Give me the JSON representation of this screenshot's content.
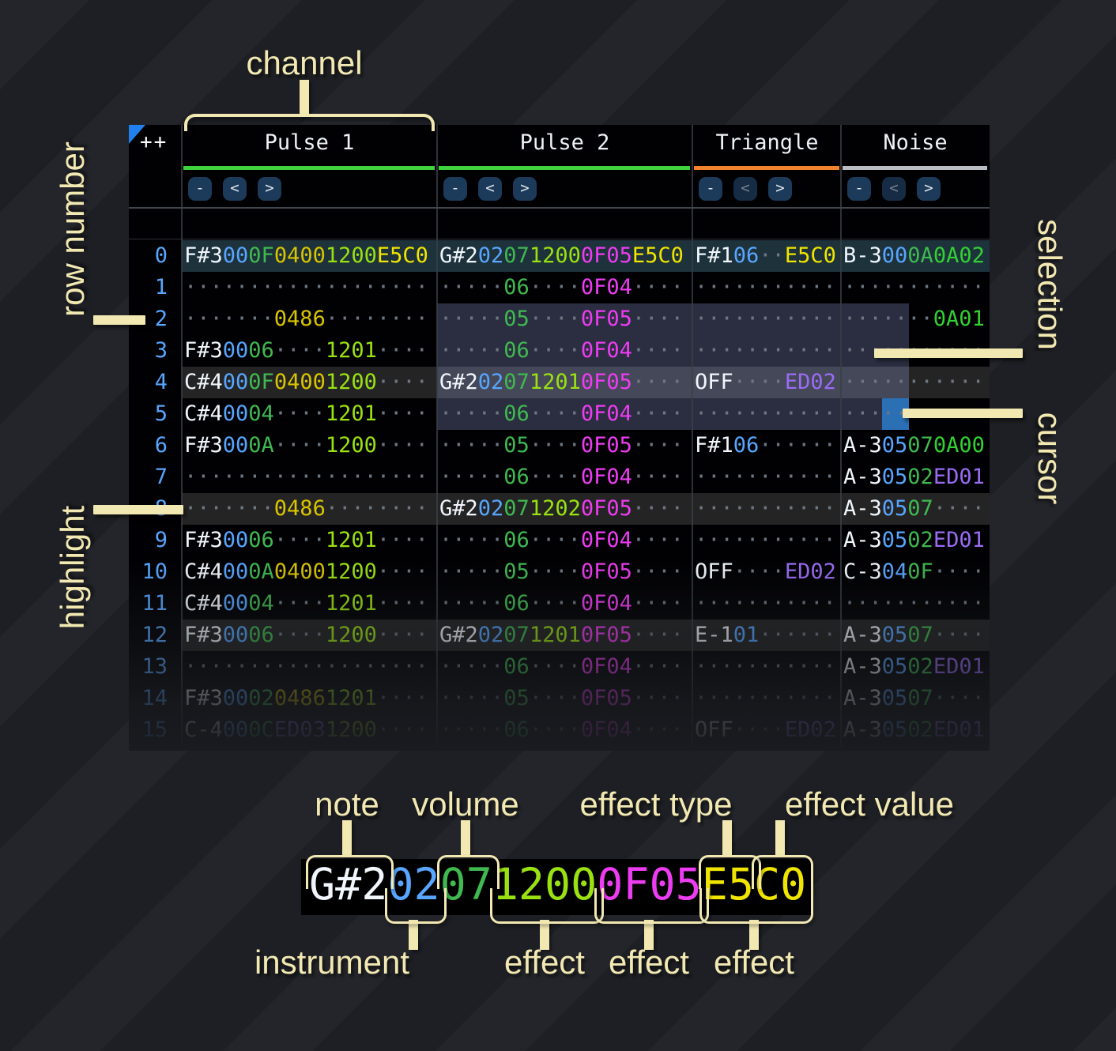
{
  "header": {
    "corner_button": "++",
    "channels": [
      {
        "name": "Pulse 1",
        "color": "#3ed33d",
        "buttons": [
          {
            "label": "-",
            "dimmed": false
          },
          {
            "label": "<",
            "dimmed": false
          },
          {
            "label": ">",
            "dimmed": false
          }
        ]
      },
      {
        "name": "Pulse 2",
        "color": "#3ed33d",
        "buttons": [
          {
            "label": "-",
            "dimmed": false
          },
          {
            "label": "<",
            "dimmed": false
          },
          {
            "label": ">",
            "dimmed": false
          }
        ]
      },
      {
        "name": "Triangle",
        "color": "#f5822d",
        "buttons": [
          {
            "label": "-",
            "dimmed": false
          },
          {
            "label": "<",
            "dimmed": true
          },
          {
            "label": ">",
            "dimmed": false
          }
        ]
      },
      {
        "name": "Noise",
        "color": "#b9bec5",
        "buttons": [
          {
            "label": "-",
            "dimmed": false
          },
          {
            "label": "<",
            "dimmed": true
          },
          {
            "label": ">",
            "dimmed": false
          }
        ]
      }
    ]
  },
  "rows": [
    {
      "n": "0",
      "bg": "active",
      "p1": [
        [
          "F#3",
          "n"
        ],
        [
          "00",
          "i"
        ],
        [
          "0F",
          "v"
        ],
        [
          "0400",
          "y"
        ],
        [
          "1200",
          "l"
        ],
        [
          "E5C0",
          "Y"
        ]
      ],
      "p2": [
        [
          "G#2",
          "n"
        ],
        [
          "02",
          "i"
        ],
        [
          "07",
          "v"
        ],
        [
          "1200",
          "l"
        ],
        [
          "0F05",
          "m"
        ],
        [
          "E5C0",
          "Y"
        ]
      ],
      "tri": [
        [
          "F#1",
          "n"
        ],
        [
          "06",
          "i"
        ],
        [
          "..",
          "d"
        ],
        [
          "E5C0",
          "Y"
        ]
      ],
      "noi": [
        [
          "B-3",
          "n"
        ],
        [
          "00",
          "i"
        ],
        [
          "0A",
          "v"
        ],
        [
          "0A02",
          "g"
        ]
      ]
    },
    {
      "n": "1",
      "bg": "",
      "p1": [
        [
          "...................",
          "d"
        ]
      ],
      "p2": [
        [
          ".....",
          "d"
        ],
        [
          "06",
          "v"
        ],
        [
          "....",
          "d"
        ],
        [
          "0F04",
          "m"
        ],
        [
          "....",
          "d"
        ]
      ],
      "tri": [
        [
          "...........",
          "d"
        ]
      ],
      "noi": [
        [
          "...........",
          "d"
        ]
      ]
    },
    {
      "n": "2",
      "bg": "",
      "p1": [
        [
          ".......",
          "d"
        ],
        [
          "0486",
          "y"
        ],
        [
          "........",
          "d"
        ]
      ],
      "p2": [
        [
          ".....",
          "d"
        ],
        [
          "05",
          "v"
        ],
        [
          "....",
          "d"
        ],
        [
          "0F05",
          "m"
        ],
        [
          "....",
          "d"
        ]
      ],
      "tri": [
        [
          "...........",
          "d"
        ]
      ],
      "noi": [
        [
          ".......",
          "d"
        ],
        [
          "0A01",
          "g"
        ]
      ]
    },
    {
      "n": "3",
      "bg": "",
      "p1": [
        [
          "F#3",
          "n"
        ],
        [
          "00",
          "i"
        ],
        [
          "06",
          "v"
        ],
        [
          "....",
          "d"
        ],
        [
          "1201",
          "l"
        ],
        [
          "....",
          "d"
        ]
      ],
      "p2": [
        [
          ".....",
          "d"
        ],
        [
          "06",
          "v"
        ],
        [
          "....",
          "d"
        ],
        [
          "0F04",
          "m"
        ],
        [
          "....",
          "d"
        ]
      ],
      "tri": [
        [
          "...........",
          "d"
        ]
      ],
      "noi": [
        [
          "...........",
          "d"
        ]
      ]
    },
    {
      "n": "4",
      "bg": "beat",
      "p1": [
        [
          "C#4",
          "n"
        ],
        [
          "00",
          "i"
        ],
        [
          "0F",
          "v"
        ],
        [
          "0400",
          "y"
        ],
        [
          "1200",
          "l"
        ],
        [
          "....",
          "d"
        ]
      ],
      "p2": [
        [
          "G#2",
          "n"
        ],
        [
          "02",
          "i"
        ],
        [
          "07",
          "v"
        ],
        [
          "1201",
          "l"
        ],
        [
          "0F05",
          "m"
        ],
        [
          "....",
          "d"
        ]
      ],
      "tri": [
        [
          "OFF",
          "n"
        ],
        [
          "....",
          "d"
        ],
        [
          "ED02",
          "p"
        ]
      ],
      "noi": [
        [
          "...........",
          "d"
        ]
      ]
    },
    {
      "n": "5",
      "bg": "",
      "p1": [
        [
          "C#4",
          "n"
        ],
        [
          "00",
          "i"
        ],
        [
          "04",
          "v"
        ],
        [
          "....",
          "d"
        ],
        [
          "1201",
          "l"
        ],
        [
          "....",
          "d"
        ]
      ],
      "p2": [
        [
          ".....",
          "d"
        ],
        [
          "06",
          "v"
        ],
        [
          "....",
          "d"
        ],
        [
          "0F04",
          "m"
        ],
        [
          "....",
          "d"
        ]
      ],
      "tri": [
        [
          "...........",
          "d"
        ]
      ],
      "noi": [
        [
          "...........",
          "d"
        ]
      ]
    },
    {
      "n": "6",
      "bg": "",
      "p1": [
        [
          "F#3",
          "n"
        ],
        [
          "00",
          "i"
        ],
        [
          "0A",
          "v"
        ],
        [
          "....",
          "d"
        ],
        [
          "1200",
          "l"
        ],
        [
          "....",
          "d"
        ]
      ],
      "p2": [
        [
          ".....",
          "d"
        ],
        [
          "05",
          "v"
        ],
        [
          "....",
          "d"
        ],
        [
          "0F05",
          "m"
        ],
        [
          "....",
          "d"
        ]
      ],
      "tri": [
        [
          "F#1",
          "n"
        ],
        [
          "06",
          "i"
        ],
        [
          "......",
          "d"
        ]
      ],
      "noi": [
        [
          "A-3",
          "n"
        ],
        [
          "05",
          "i"
        ],
        [
          "07",
          "v"
        ],
        [
          "0A00",
          "g"
        ]
      ]
    },
    {
      "n": "7",
      "bg": "",
      "p1": [
        [
          "...................",
          "d"
        ]
      ],
      "p2": [
        [
          ".....",
          "d"
        ],
        [
          "06",
          "v"
        ],
        [
          "....",
          "d"
        ],
        [
          "0F04",
          "m"
        ],
        [
          "....",
          "d"
        ]
      ],
      "tri": [
        [
          "...........",
          "d"
        ]
      ],
      "noi": [
        [
          "A-3",
          "n"
        ],
        [
          "05",
          "i"
        ],
        [
          "02",
          "v"
        ],
        [
          "ED01",
          "p"
        ]
      ]
    },
    {
      "n": "8",
      "bg": "beat",
      "p1": [
        [
          ".......",
          "d"
        ],
        [
          "0486",
          "y"
        ],
        [
          "........",
          "d"
        ]
      ],
      "p2": [
        [
          "G#2",
          "n"
        ],
        [
          "02",
          "i"
        ],
        [
          "07",
          "v"
        ],
        [
          "1202",
          "l"
        ],
        [
          "0F05",
          "m"
        ],
        [
          "....",
          "d"
        ]
      ],
      "tri": [
        [
          "...........",
          "d"
        ]
      ],
      "noi": [
        [
          "A-3",
          "n"
        ],
        [
          "05",
          "i"
        ],
        [
          "07",
          "v"
        ],
        [
          "....",
          "d"
        ]
      ]
    },
    {
      "n": "9",
      "bg": "",
      "p1": [
        [
          "F#3",
          "n"
        ],
        [
          "00",
          "i"
        ],
        [
          "06",
          "v"
        ],
        [
          "....",
          "d"
        ],
        [
          "1201",
          "l"
        ],
        [
          "....",
          "d"
        ]
      ],
      "p2": [
        [
          ".....",
          "d"
        ],
        [
          "06",
          "v"
        ],
        [
          "....",
          "d"
        ],
        [
          "0F04",
          "m"
        ],
        [
          "....",
          "d"
        ]
      ],
      "tri": [
        [
          "...........",
          "d"
        ]
      ],
      "noi": [
        [
          "A-3",
          "n"
        ],
        [
          "05",
          "i"
        ],
        [
          "02",
          "v"
        ],
        [
          "ED01",
          "p"
        ]
      ]
    },
    {
      "n": "10",
      "bg": "",
      "p1": [
        [
          "C#4",
          "n"
        ],
        [
          "00",
          "i"
        ],
        [
          "0A",
          "v"
        ],
        [
          "0400",
          "y"
        ],
        [
          "1200",
          "l"
        ],
        [
          "....",
          "d"
        ]
      ],
      "p2": [
        [
          ".....",
          "d"
        ],
        [
          "05",
          "v"
        ],
        [
          "....",
          "d"
        ],
        [
          "0F05",
          "m"
        ],
        [
          "....",
          "d"
        ]
      ],
      "tri": [
        [
          "OFF",
          "n"
        ],
        [
          "....",
          "d"
        ],
        [
          "ED02",
          "p"
        ]
      ],
      "noi": [
        [
          "C-3",
          "n"
        ],
        [
          "04",
          "i"
        ],
        [
          "0F",
          "v"
        ],
        [
          "....",
          "d"
        ]
      ]
    },
    {
      "n": "11",
      "bg": "",
      "p1": [
        [
          "C#4",
          "n"
        ],
        [
          "00",
          "i"
        ],
        [
          "04",
          "v"
        ],
        [
          "....",
          "d"
        ],
        [
          "1201",
          "l"
        ],
        [
          "....",
          "d"
        ]
      ],
      "p2": [
        [
          ".....",
          "d"
        ],
        [
          "06",
          "v"
        ],
        [
          "....",
          "d"
        ],
        [
          "0F04",
          "m"
        ],
        [
          "....",
          "d"
        ]
      ],
      "tri": [
        [
          "...........",
          "d"
        ]
      ],
      "noi": [
        [
          "...........",
          "d"
        ]
      ]
    },
    {
      "n": "12",
      "bg": "beat",
      "p1": [
        [
          "F#3",
          "n"
        ],
        [
          "00",
          "i"
        ],
        [
          "06",
          "v"
        ],
        [
          "....",
          "d"
        ],
        [
          "1200",
          "l"
        ],
        [
          "....",
          "d"
        ]
      ],
      "p2": [
        [
          "G#2",
          "n"
        ],
        [
          "02",
          "i"
        ],
        [
          "07",
          "v"
        ],
        [
          "1201",
          "l"
        ],
        [
          "0F05",
          "m"
        ],
        [
          "....",
          "d"
        ]
      ],
      "tri": [
        [
          "E-1",
          "n"
        ],
        [
          "01",
          "i"
        ],
        [
          "......",
          "d"
        ]
      ],
      "noi": [
        [
          "A-3",
          "n"
        ],
        [
          "05",
          "i"
        ],
        [
          "07",
          "v"
        ],
        [
          "....",
          "d"
        ]
      ]
    },
    {
      "n": "13",
      "bg": "",
      "p1": [
        [
          "...................",
          "d"
        ]
      ],
      "p2": [
        [
          ".....",
          "d"
        ],
        [
          "06",
          "v"
        ],
        [
          "....",
          "d"
        ],
        [
          "0F04",
          "m"
        ],
        [
          "....",
          "d"
        ]
      ],
      "tri": [
        [
          "...........",
          "d"
        ]
      ],
      "noi": [
        [
          "A-3",
          "n"
        ],
        [
          "05",
          "i"
        ],
        [
          "02",
          "v"
        ],
        [
          "ED01",
          "p"
        ]
      ]
    },
    {
      "n": "14",
      "bg": "",
      "p1": [
        [
          "F#3",
          "n"
        ],
        [
          "00",
          "i"
        ],
        [
          "02",
          "v"
        ],
        [
          "0486",
          "y"
        ],
        [
          "1201",
          "l"
        ],
        [
          "....",
          "d"
        ]
      ],
      "p2": [
        [
          ".....",
          "d"
        ],
        [
          "05",
          "v"
        ],
        [
          "....",
          "d"
        ],
        [
          "0F05",
          "m"
        ],
        [
          "....",
          "d"
        ]
      ],
      "tri": [
        [
          "...........",
          "d"
        ]
      ],
      "noi": [
        [
          "A-3",
          "n"
        ],
        [
          "05",
          "i"
        ],
        [
          "07",
          "v"
        ],
        [
          "....",
          "d"
        ]
      ]
    },
    {
      "n": "15",
      "bg": "",
      "p1": [
        [
          "C-4",
          "n"
        ],
        [
          "00",
          "i"
        ],
        [
          "0C",
          "v"
        ],
        [
          "ED03",
          "p"
        ],
        [
          "1200",
          "l"
        ],
        [
          "....",
          "d"
        ]
      ],
      "p2": [
        [
          ".....",
          "d"
        ],
        [
          "06",
          "v"
        ],
        [
          "....",
          "d"
        ],
        [
          "0F04",
          "m"
        ],
        [
          "....",
          "d"
        ]
      ],
      "tri": [
        [
          "OFF",
          "n"
        ],
        [
          "....",
          "d"
        ],
        [
          "ED02",
          "p"
        ]
      ],
      "noi": [
        [
          "A-3",
          "n"
        ],
        [
          "05",
          "i"
        ],
        [
          "02",
          "v"
        ],
        [
          "ED01",
          "p"
        ]
      ]
    }
  ],
  "annotations": {
    "channel": "channel",
    "row_number": "row number",
    "highlight": "highlight",
    "selection": "selection",
    "cursor": "cursor"
  },
  "legend": {
    "labels": {
      "note": "note",
      "volume": "volume",
      "effect_type": "effect type",
      "effect_value": "effect value",
      "instrument": "instrument",
      "effect": "effect"
    },
    "example": [
      [
        "G#2",
        "n"
      ],
      [
        "02",
        "i"
      ],
      [
        "07",
        "v"
      ],
      [
        "1200",
        "l"
      ],
      [
        "0F05",
        "m"
      ],
      [
        "E5C0",
        "Y"
      ]
    ]
  },
  "palette": {
    "note": "#f0f6fc",
    "instrument": "#58a6ff",
    "volume": "#3fb950",
    "fx_yellow": "#d9c400",
    "fx_yellow_bright": "#f0e500",
    "fx_lime": "#9ae112",
    "fx_magenta": "#ee3cf2",
    "fx_green": "#32d132",
    "fx_purple": "#9a6cf5",
    "empty": "#6e7681",
    "rownum": "#58a6ff",
    "row_active": "#1d323b",
    "row_beat": "#242424",
    "cursor": "#2b6fb5",
    "selection": "rgba(158,170,228,0.27)",
    "annotation": "#f2e8b2",
    "btn_bg": "#1c3a5a",
    "btn_bg_dim": "#152c44",
    "btn_fg": "#dfe6ec",
    "btn_fg_dim": "#77828d"
  }
}
